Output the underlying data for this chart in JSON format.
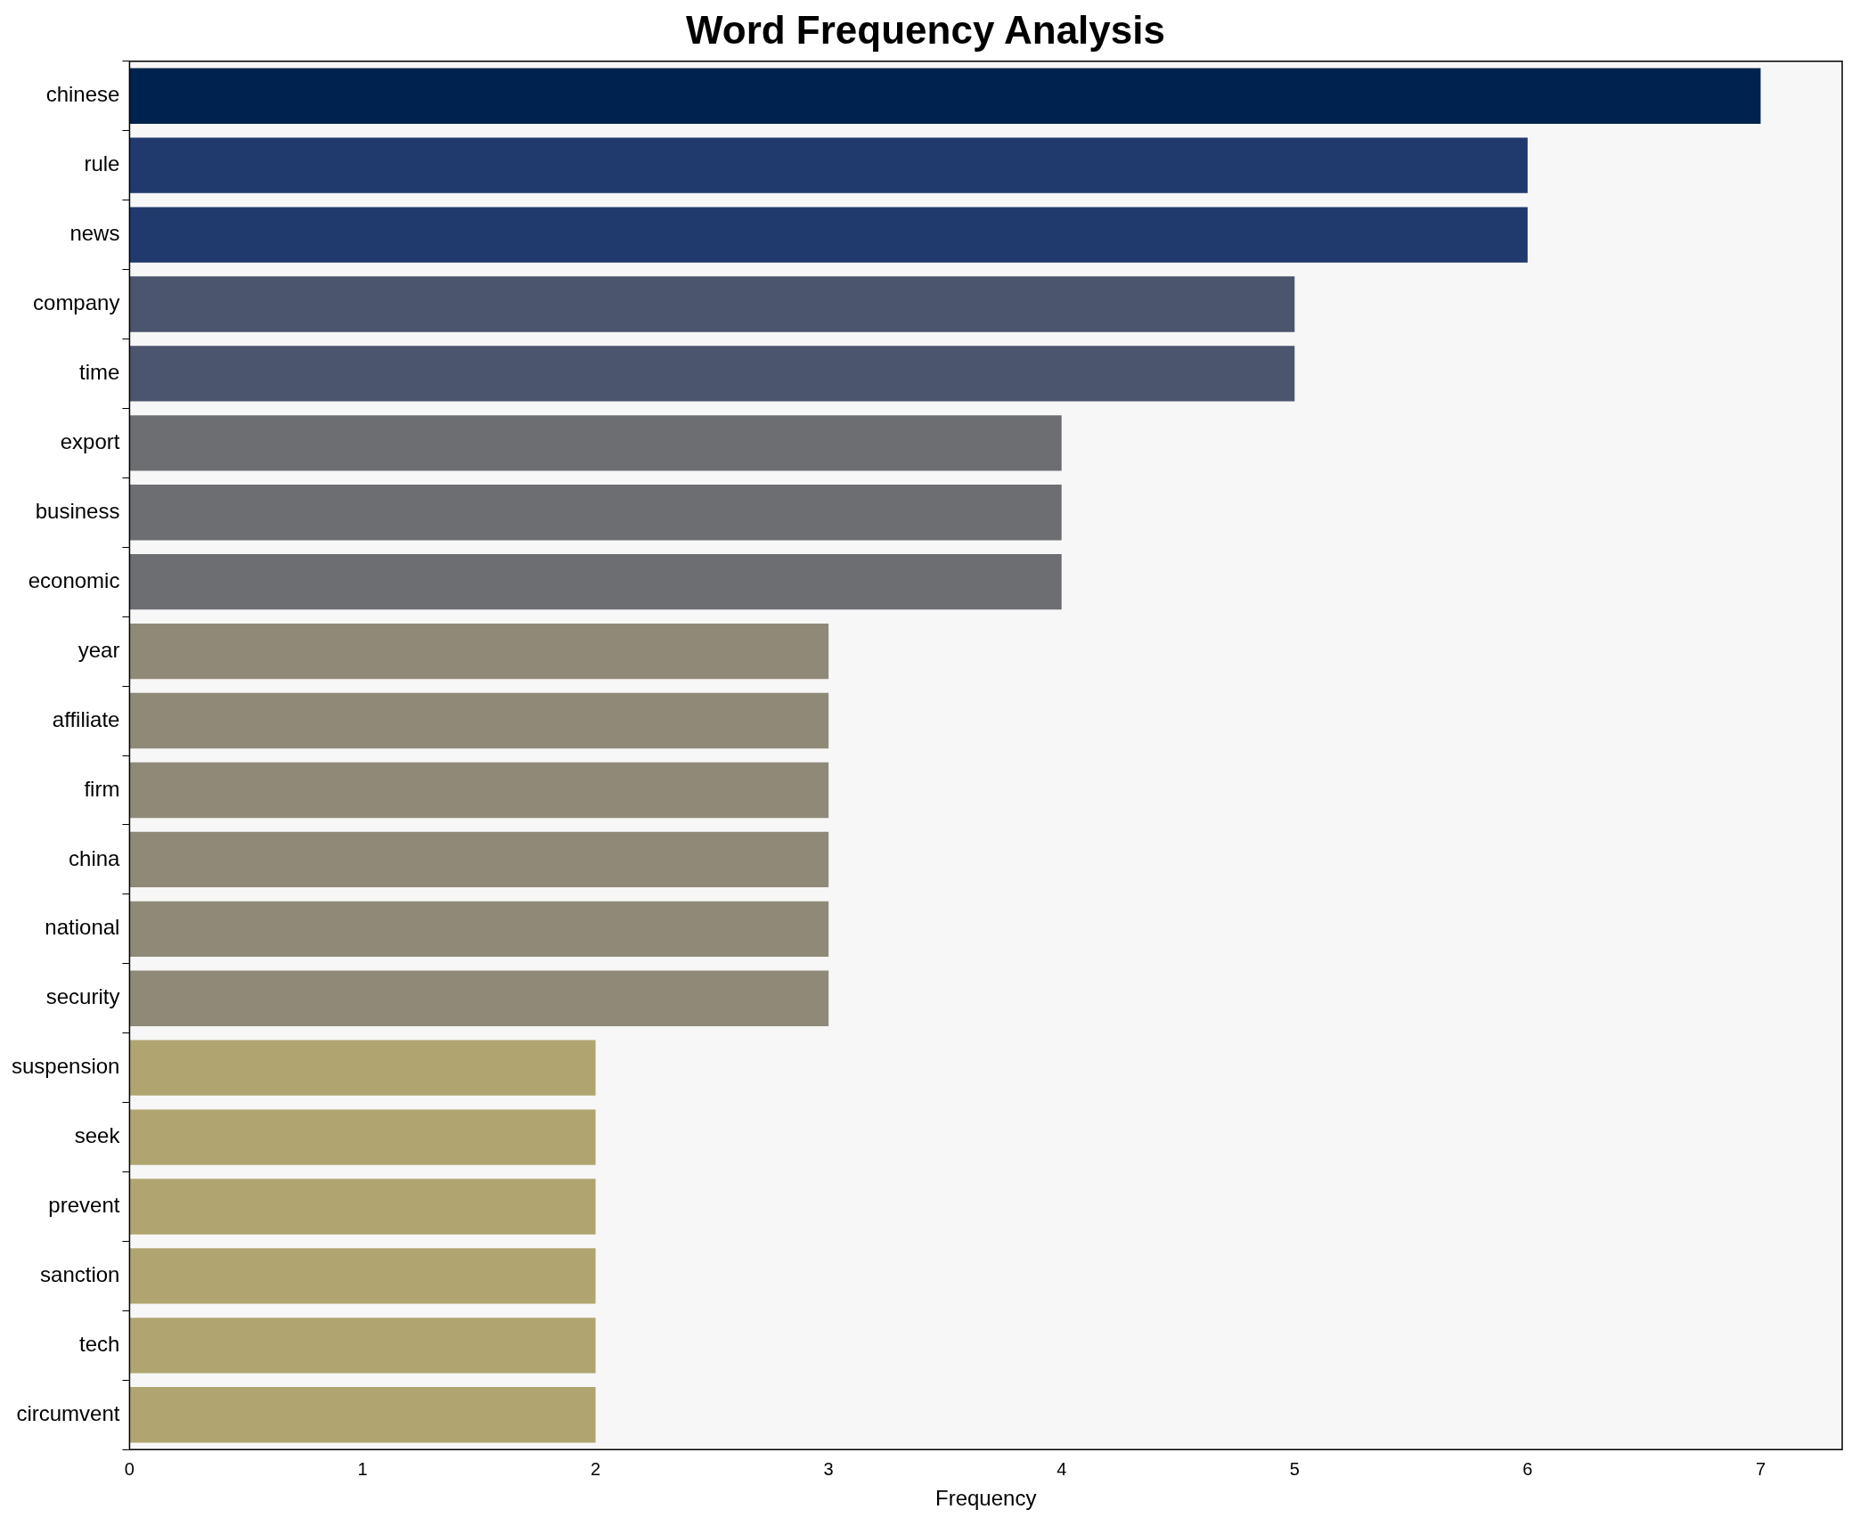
{
  "chart_data": {
    "type": "bar",
    "orientation": "horizontal",
    "title": "Word Frequency Analysis",
    "xlabel": "Frequency",
    "categories": [
      "chinese",
      "rule",
      "news",
      "company",
      "time",
      "export",
      "business",
      "economic",
      "year",
      "affiliate",
      "firm",
      "china",
      "national",
      "security",
      "suspension",
      "seek",
      "prevent",
      "sanction",
      "tech",
      "circumvent"
    ],
    "values": [
      7,
      6,
      6,
      5,
      5,
      4,
      4,
      4,
      3,
      3,
      3,
      3,
      3,
      3,
      2,
      2,
      2,
      2,
      2,
      2
    ],
    "colors": [
      "#00224e",
      "#213a6e",
      "#213a6e",
      "#4c556e",
      "#4c556e",
      "#6d6e72",
      "#6d6e72",
      "#6d6e72",
      "#8f8a78",
      "#8f8a78",
      "#8f8a78",
      "#8f8a78",
      "#8f8a78",
      "#8f8a78",
      "#b0a570",
      "#b0a570",
      "#b0a570",
      "#b0a570",
      "#b0a570",
      "#b0a570"
    ],
    "xlim": [
      0,
      7.35
    ],
    "xticks": [
      0,
      1,
      2,
      3,
      4,
      5,
      6,
      7
    ],
    "grid": false,
    "legend": false
  }
}
